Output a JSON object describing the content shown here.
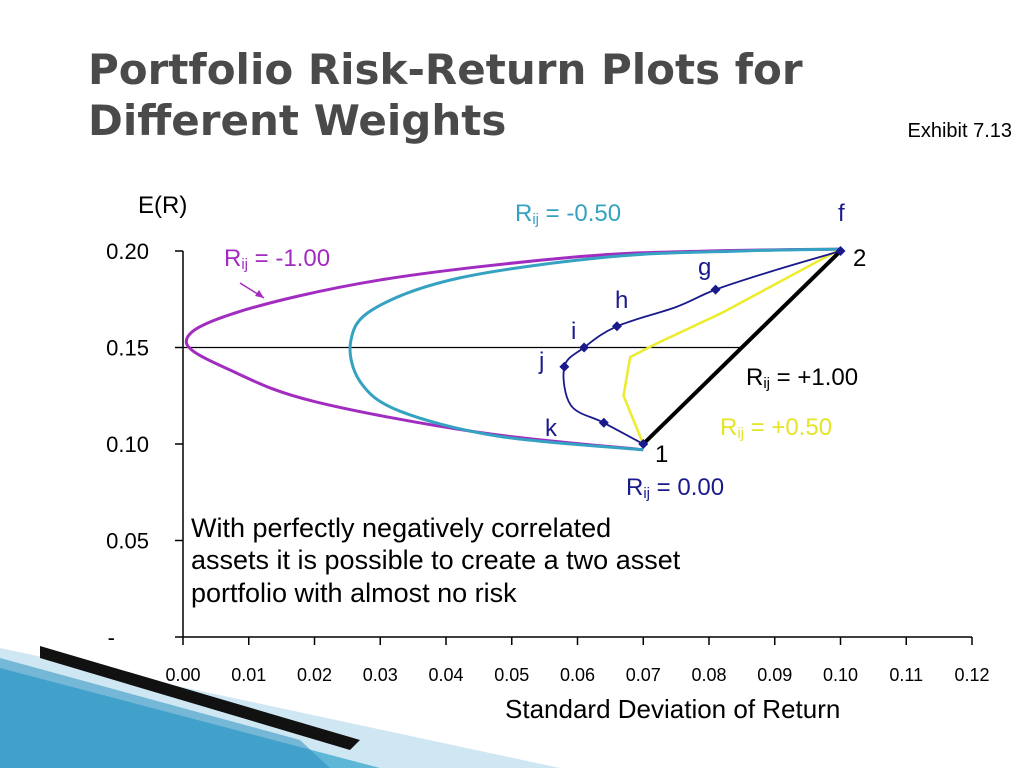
{
  "slide": {
    "title": "Portfolio Risk-Return Plots for Different Weights",
    "exhibit": "Exhibit 7.13",
    "note": "With perfectly negatively correlated\nassets it is possible to create a two asset\nportfolio with almost no risk"
  },
  "colors": {
    "neg100": "#a22cc0",
    "neg050": "#36a2c2",
    "zero": "#1a1a8c",
    "pos050": "#ecec2a",
    "pos100": "#000000",
    "title": "#4a4a4a"
  },
  "chart_data": {
    "type": "line",
    "ylabel": "E(R)",
    "xlabel": "Standard Deviation of Return",
    "xlim": [
      0,
      0.12
    ],
    "ylim": [
      0,
      0.2
    ],
    "x_ticks": [
      "0.00",
      "0.01",
      "0.02",
      "0.03",
      "0.04",
      "0.05",
      "0.06",
      "0.07",
      "0.08",
      "0.09",
      "0.10",
      "0.11",
      "0.12"
    ],
    "y_ticks": [
      {
        "value": 0,
        "label": "-"
      },
      {
        "value": 0.05,
        "label": "0.05"
      },
      {
        "value": 0.1,
        "label": "0.10"
      },
      {
        "value": 0.15,
        "label": "0.15"
      },
      {
        "value": 0.2,
        "label": "0.20"
      }
    ],
    "reference_line": {
      "y": 0.15,
      "x_from": 0.0,
      "x_to": 0.085
    },
    "series": [
      {
        "key": "neg100",
        "label_main": "R",
        "label_sub": "ij",
        "label_rest": " = -1.00",
        "x": [
          0.07,
          0.045,
          0.02,
          0.008,
          0.0005,
          0.008,
          0.03,
          0.06,
          0.08,
          0.1
        ],
        "y": [
          0.097,
          0.106,
          0.122,
          0.137,
          0.153,
          0.168,
          0.185,
          0.197,
          0.2,
          0.201
        ]
      },
      {
        "key": "neg050",
        "label_main": "R",
        "label_sub": "ij",
        "label_rest": " = -0.50",
        "x": [
          0.07,
          0.048,
          0.033,
          0.027,
          0.0255,
          0.029,
          0.042,
          0.065,
          0.085,
          0.1
        ],
        "y": [
          0.097,
          0.104,
          0.117,
          0.132,
          0.153,
          0.17,
          0.186,
          0.197,
          0.2,
          0.201
        ]
      },
      {
        "key": "zero",
        "label_main": "R",
        "label_sub": "ij",
        "label_rest": " = 0.00",
        "x": [
          0.07,
          0.064,
          0.059,
          0.058,
          0.061,
          0.066,
          0.075,
          0.081,
          0.09,
          0.1
        ],
        "y": [
          0.1,
          0.111,
          0.12,
          0.14,
          0.15,
          0.161,
          0.171,
          0.18,
          0.19,
          0.2
        ]
      },
      {
        "key": "pos050",
        "label_main": "R",
        "label_sub": "ij",
        "label_rest": " = +0.50",
        "x": [
          0.07,
          0.067,
          0.068,
          0.072,
          0.082,
          0.094,
          0.1
        ],
        "y": [
          0.1,
          0.125,
          0.145,
          0.152,
          0.168,
          0.19,
          0.201
        ]
      },
      {
        "key": "pos100",
        "label_main": "R",
        "label_sub": "ij",
        "label_rest": " = +1.00",
        "x": [
          0.07,
          0.1
        ],
        "y": [
          0.1,
          0.2
        ]
      }
    ],
    "markers": [
      {
        "x": 0.07,
        "y": 0.1
      },
      {
        "x": 0.064,
        "y": 0.111
      },
      {
        "x": 0.058,
        "y": 0.14
      },
      {
        "x": 0.061,
        "y": 0.15
      },
      {
        "x": 0.066,
        "y": 0.161
      },
      {
        "x": 0.081,
        "y": 0.18
      },
      {
        "x": 0.1,
        "y": 0.2
      }
    ],
    "point_labels": [
      "f",
      "2",
      "g",
      "h",
      "i",
      "j",
      "k",
      "1"
    ]
  }
}
